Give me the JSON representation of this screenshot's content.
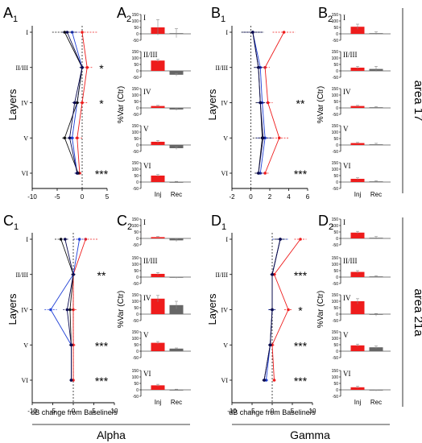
{
  "colors": {
    "injection": "#ee1c1c",
    "recovery": "#666666",
    "baseline": "#111111",
    "blue": "#1f3fd6",
    "dark_blue": "#0a0a50"
  },
  "labels": {
    "panel_A1": "A",
    "panel_A1_sub": "1",
    "panel_A2": "A",
    "panel_A2_sub": "2",
    "panel_B1": "B",
    "panel_B1_sub": "1",
    "panel_B2": "B",
    "panel_B2_sub": "2",
    "panel_C1": "C",
    "panel_C1_sub": "1",
    "panel_C2": "C",
    "panel_C2_sub": "2",
    "panel_D1": "D",
    "panel_D1_sub": "1",
    "panel_D2": "D",
    "panel_D2_sub": "2",
    "layers_ylabel": "Layers",
    "var_ylabel": "%Var (Ctr)",
    "xlabel": "dB change from Baseline/s",
    "bottom_alpha": "Alpha",
    "bottom_gamma": "Gamma",
    "area_top": "area 17",
    "area_bottom": "area 21a"
  },
  "chart_data": [
    {
      "panel": "A1",
      "type": "line",
      "orientation": "horizontal-layers",
      "layers": [
        "I",
        "II/III",
        "IV",
        "V",
        "VI"
      ],
      "xlim": [
        -10,
        5
      ],
      "xticks": [
        "-10",
        "-5",
        "0",
        "5"
      ],
      "series": [
        {
          "color": "red",
          "values": [
            0,
            1,
            0,
            -1,
            -0.5
          ],
          "errors": [
            3,
            1,
            1,
            1,
            0.5
          ]
        },
        {
          "color": "blue",
          "values": [
            -2,
            0,
            -1,
            -2,
            -1
          ],
          "errors": [
            1.5,
            0.5,
            0.5,
            0.5,
            0.5
          ]
        },
        {
          "color": "black",
          "values": [
            -3.5,
            0,
            -1,
            -3.5,
            -0.8
          ],
          "errors": [
            2.5,
            0.5,
            0.5,
            0.5,
            0.5
          ]
        },
        {
          "color": "dark_blue",
          "values": [
            -3,
            0,
            -1.5,
            -2.5,
            -1
          ],
          "errors": [
            1,
            0.5,
            0.5,
            0.5,
            0.5
          ]
        }
      ],
      "significance": [
        "",
        "*",
        "*",
        "",
        "***"
      ]
    },
    {
      "panel": "B1",
      "type": "line",
      "orientation": "horizontal-layers",
      "layers": [
        "I",
        "II/III",
        "IV",
        "V",
        "VI"
      ],
      "xlim": [
        -2,
        6
      ],
      "xticks": [
        "-2",
        "0",
        "2",
        "4",
        "6"
      ],
      "series": [
        {
          "color": "red",
          "values": [
            3.5,
            1.5,
            1.8,
            3,
            1.5
          ],
          "errors": [
            1.2,
            0.5,
            0.5,
            1,
            0.4
          ]
        },
        {
          "color": "blue",
          "values": [
            0.2,
            1,
            1.2,
            1.5,
            1
          ],
          "errors": [
            1.2,
            0.5,
            0.5,
            0.8,
            0.4
          ]
        },
        {
          "color": "black",
          "values": [
            0.2,
            0.8,
            1,
            1.2,
            0.8
          ],
          "errors": [
            1.2,
            0.5,
            0.5,
            1,
            0.4
          ]
        },
        {
          "color": "dark_blue",
          "values": [
            0.2,
            0.8,
            1,
            1.3,
            0.8
          ],
          "errors": [
            1,
            0.4,
            0.4,
            0.8,
            0.3
          ]
        }
      ],
      "significance": [
        "",
        "",
        "**",
        "",
        "***"
      ]
    },
    {
      "panel": "C1",
      "type": "line",
      "orientation": "horizontal-layers",
      "layers": [
        "I",
        "II/III",
        "IV",
        "V",
        "VI"
      ],
      "xlim": [
        -10,
        10
      ],
      "xticks": [
        "-10",
        "-5",
        "0",
        "5",
        "10"
      ],
      "series": [
        {
          "color": "red",
          "values": [
            3,
            0,
            0,
            0,
            0
          ],
          "errors": [
            3,
            0.5,
            1,
            0.5,
            0.3
          ]
        },
        {
          "color": "blue",
          "values": [
            1.5,
            0,
            -5.5,
            -0.5,
            -0.5
          ],
          "errors": [
            1.5,
            0.5,
            1.5,
            0.5,
            0.3
          ]
        },
        {
          "color": "black",
          "values": [
            -3,
            0,
            -0.8,
            -0.5,
            -0.5
          ],
          "errors": [
            1.5,
            0.5,
            1,
            0.5,
            0.3
          ]
        },
        {
          "color": "dark_blue",
          "values": [
            -2,
            0,
            -1.5,
            -0.5,
            -0.5
          ],
          "errors": [
            1,
            0.4,
            1,
            0.4,
            0.3
          ]
        }
      ],
      "significance": [
        "",
        "**",
        "",
        "***",
        "***"
      ]
    },
    {
      "panel": "D1",
      "type": "line",
      "orientation": "horizontal-layers",
      "layers": [
        "I",
        "II/III",
        "IV",
        "V",
        "VI"
      ],
      "xlim": [
        -10,
        10
      ],
      "xticks": [
        "-10",
        "-5",
        "0",
        "5",
        "10"
      ],
      "series": [
        {
          "color": "red",
          "values": [
            7,
            0.5,
            4,
            0,
            0.5
          ],
          "errors": [
            1.5,
            0.5,
            1,
            0.5,
            0.4
          ]
        },
        {
          "color": "blue",
          "values": [
            2,
            0,
            0,
            -0.5,
            -1.5
          ],
          "errors": [
            2,
            0.5,
            1,
            0.5,
            0.5
          ]
        },
        {
          "color": "black",
          "values": [
            2,
            0,
            0,
            -0.5,
            -2
          ],
          "errors": [
            1.5,
            0.5,
            0.8,
            0.5,
            0.5
          ]
        },
        {
          "color": "dark_blue",
          "values": [
            2,
            0,
            0,
            -0.5,
            -2
          ],
          "errors": [
            1,
            0.4,
            0.8,
            0.4,
            0.4
          ]
        }
      ],
      "significance": [
        "",
        "***",
        "*",
        "***",
        "***"
      ]
    },
    {
      "panel": "A2",
      "type": "bar",
      "categories": [
        "Inj",
        "Rec"
      ],
      "ylim": [
        -50,
        150
      ],
      "yticks": [
        "150",
        "100",
        "50",
        "0",
        "-50"
      ],
      "layers": [
        {
          "name": "I",
          "values": [
            50,
            5
          ],
          "errors": [
            60,
            35
          ]
        },
        {
          "name": "II/III",
          "values": [
            80,
            -30
          ],
          "errors": [
            10,
            10
          ]
        },
        {
          "name": "IV",
          "values": [
            15,
            -12
          ],
          "errors": [
            5,
            8
          ]
        },
        {
          "name": "V",
          "values": [
            25,
            -25
          ],
          "errors": [
            10,
            10
          ]
        },
        {
          "name": "VI",
          "values": [
            50,
            0
          ],
          "errors": [
            8,
            5
          ]
        }
      ]
    },
    {
      "panel": "B2",
      "type": "bar",
      "categories": [
        "Inj",
        "Rec"
      ],
      "ylim": [
        -50,
        150
      ],
      "yticks": [
        "150",
        "100",
        "50",
        "0",
        "-50"
      ],
      "layers": [
        {
          "name": "I",
          "values": [
            55,
            5
          ],
          "errors": [
            20,
            10
          ]
        },
        {
          "name": "II/III",
          "values": [
            25,
            15
          ],
          "errors": [
            10,
            20
          ]
        },
        {
          "name": "IV",
          "values": [
            15,
            5
          ],
          "errors": [
            5,
            5
          ]
        },
        {
          "name": "V",
          "values": [
            15,
            5
          ],
          "errors": [
            5,
            8
          ]
        },
        {
          "name": "VI",
          "values": [
            25,
            5
          ],
          "errors": [
            8,
            5
          ]
        }
      ]
    },
    {
      "panel": "C2",
      "type": "bar",
      "categories": [
        "Inj",
        "Rec"
      ],
      "ylim": [
        -50,
        150
      ],
      "yticks": [
        "150",
        "100",
        "50",
        "0",
        "-50"
      ],
      "layers": [
        {
          "name": "I",
          "values": [
            10,
            -15
          ],
          "errors": [
            5,
            10
          ]
        },
        {
          "name": "II/III",
          "values": [
            25,
            -5
          ],
          "errors": [
            10,
            5
          ]
        },
        {
          "name": "IV",
          "values": [
            120,
            70
          ],
          "errors": [
            25,
            30
          ]
        },
        {
          "name": "V",
          "values": [
            65,
            20
          ],
          "errors": [
            10,
            5
          ]
        },
        {
          "name": "VI",
          "values": [
            35,
            0
          ],
          "errors": [
            8,
            5
          ]
        }
      ]
    },
    {
      "panel": "D2",
      "type": "bar",
      "categories": [
        "Inj",
        "Rec"
      ],
      "ylim": [
        -50,
        150
      ],
      "yticks": [
        "150",
        "100",
        "50",
        "0",
        "-50"
      ],
      "layers": [
        {
          "name": "I",
          "values": [
            45,
            5
          ],
          "errors": [
            10,
            10
          ]
        },
        {
          "name": "II/III",
          "values": [
            40,
            5
          ],
          "errors": [
            10,
            5
          ]
        },
        {
          "name": "IV",
          "values": [
            100,
            -5
          ],
          "errors": [
            20,
            10
          ]
        },
        {
          "name": "V",
          "values": [
            45,
            30
          ],
          "errors": [
            10,
            10
          ]
        },
        {
          "name": "VI",
          "values": [
            20,
            -5
          ],
          "errors": [
            8,
            5
          ]
        }
      ]
    }
  ]
}
